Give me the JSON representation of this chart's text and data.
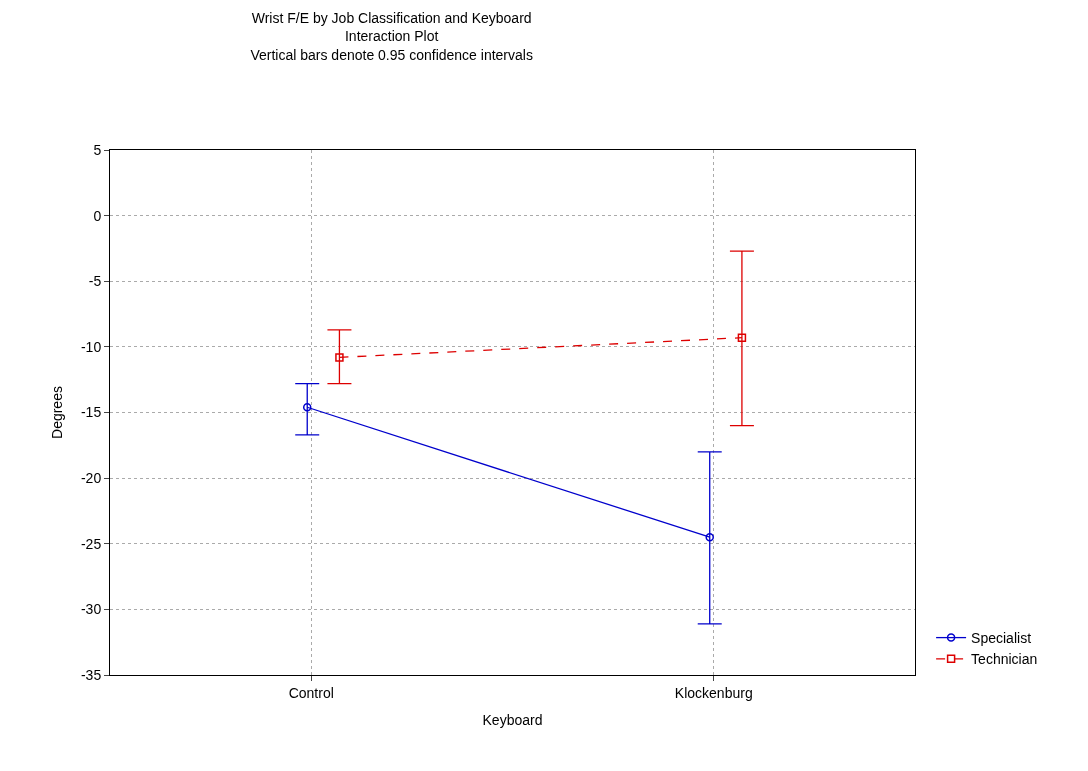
{
  "chart_data": {
    "type": "line",
    "title": "Wrist F/E by Job Classification and Keyboard\nInteraction Plot\nVertical bars denote 0.95 confidence intervals",
    "xlabel": "Keyboard",
    "ylabel": "Degrees",
    "categories": [
      "Control",
      "Klockenburg"
    ],
    "series": [
      {
        "name": "Specialist",
        "color": "#0000cc",
        "values": [
          -14.6,
          -24.5
        ],
        "errors": [
          [
            -16.7,
            -12.8
          ],
          [
            -31.1,
            -18.0
          ]
        ],
        "marker": "circle",
        "line_style": "solid"
      },
      {
        "name": "Technician",
        "color": "#dd0000",
        "values": [
          -10.8,
          -9.3
        ],
        "errors": [
          [
            -12.8,
            -8.7
          ],
          [
            -16.0,
            -2.7
          ]
        ],
        "marker": "square",
        "line_style": "dashed"
      }
    ],
    "ylim": [
      -35,
      5
    ],
    "yticks": [
      -35,
      -30,
      -25,
      -20,
      -15,
      -10,
      -5,
      0,
      5
    ],
    "grid": true,
    "legend": "bottom right"
  }
}
